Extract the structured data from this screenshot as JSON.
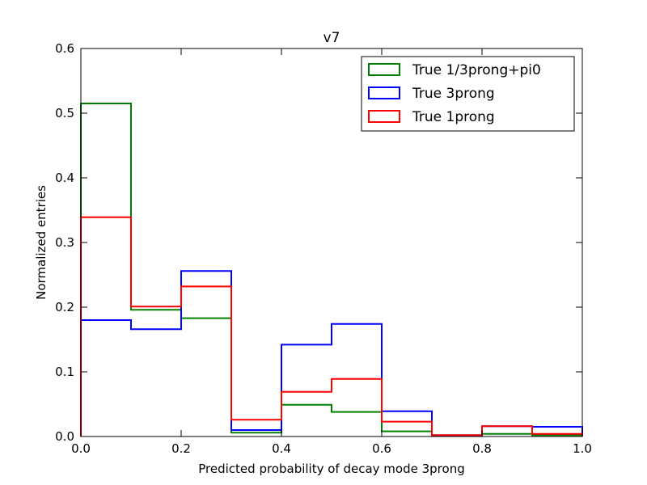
{
  "chart_data": {
    "type": "histogram",
    "title": "v7",
    "xlabel": "Predicted probability of decay mode 3prong",
    "ylabel": "Normalized entries",
    "xlim": [
      0.0,
      1.0
    ],
    "ylim": [
      0.0,
      0.6
    ],
    "xticks": [
      "0.0",
      "0.2",
      "0.4",
      "0.6",
      "0.8",
      "1.0"
    ],
    "yticks": [
      "0.0",
      "0.1",
      "0.2",
      "0.3",
      "0.4",
      "0.5",
      "0.6"
    ],
    "bin_edges": [
      0.0,
      0.1,
      0.2,
      0.3,
      0.4,
      0.5,
      0.6,
      0.7,
      0.8,
      0.9,
      1.0
    ],
    "grid": false,
    "legend_position": "top-right",
    "series": [
      {
        "name": "True 1/3prong+pi0",
        "color": "#008000",
        "values": [
          0.515,
          0.196,
          0.183,
          0.006,
          0.049,
          0.038,
          0.008,
          0.002,
          0.004,
          0.002
        ]
      },
      {
        "name": "True 3prong",
        "color": "#0000ff",
        "values": [
          0.18,
          0.166,
          0.256,
          0.01,
          0.142,
          0.174,
          0.039,
          0.002,
          0.016,
          0.015
        ]
      },
      {
        "name": "True 1prong",
        "color": "#ff0000",
        "values": [
          0.339,
          0.201,
          0.232,
          0.026,
          0.069,
          0.089,
          0.023,
          0.002,
          0.016,
          0.004
        ]
      }
    ]
  }
}
